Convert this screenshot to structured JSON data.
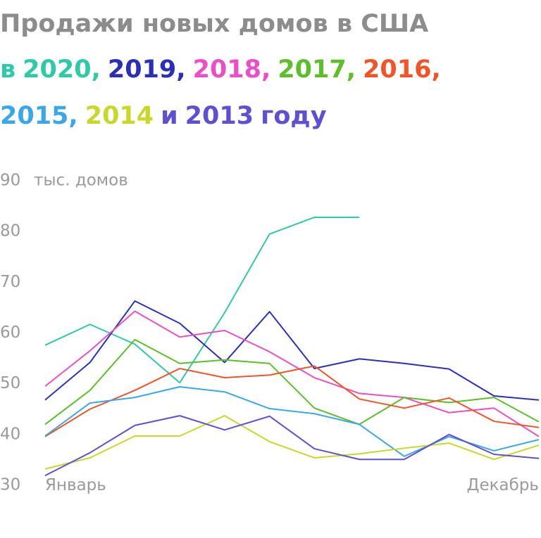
{
  "chart_data": {
    "type": "line",
    "title": "Продажи новых домов в США",
    "legend_text": {
      "prefix": "в",
      "separator": ",",
      "conjunction": "и",
      "suffix": "году"
    },
    "y_label": "тыс. домов",
    "categories": [
      "Январь",
      null,
      null,
      null,
      null,
      null,
      null,
      null,
      null,
      null,
      null,
      "Декабрь"
    ],
    "ylim": [
      30,
      90
    ],
    "yticks": [
      30,
      40,
      50,
      60,
      70,
      80,
      90
    ],
    "grid": false,
    "series": [
      {
        "name": "2020",
        "color": "#2ec9a5",
        "values": [
          57.6,
          61.7,
          57.8,
          50.2,
          64,
          79.5,
          82.8,
          82.8,
          null,
          null,
          null,
          null
        ]
      },
      {
        "name": "2019",
        "color": "#2b2fb8",
        "values": [
          46.8,
          54.2,
          66.3,
          61.9,
          54.2,
          64.2,
          53,
          54.9,
          54,
          52.9,
          47.6,
          46.8
        ]
      },
      {
        "name": "2018",
        "color": "#ea4fc6",
        "values": [
          49.5,
          56.5,
          64.3,
          59.2,
          60.5,
          56.3,
          51.2,
          48.1,
          47.3,
          44.3,
          45.2,
          39.6
        ]
      },
      {
        "name": "2017",
        "color": "#5cbf2a",
        "values": [
          42,
          48.7,
          58.7,
          54,
          54.7,
          54,
          45.2,
          42,
          47.3,
          46.3,
          47.3,
          42.5
        ]
      },
      {
        "name": "2016",
        "color": "#f0552a",
        "values": [
          39.6,
          45,
          48.7,
          53,
          51.2,
          51.7,
          53.5,
          47,
          45.2,
          47.2,
          42.6,
          41.4
        ]
      },
      {
        "name": "2015",
        "color": "#3aa7e8",
        "values": [
          39.7,
          46.2,
          47.3,
          49.4,
          48.4,
          45.1,
          44.1,
          42,
          35.7,
          39.6,
          36.8,
          39
        ]
      },
      {
        "name": "2014",
        "color": "#c8d82a",
        "values": [
          33.2,
          35.4,
          39.7,
          39.7,
          43.7,
          38.6,
          35.4,
          36.2,
          37.3,
          38.3,
          35.1,
          37.9
        ]
      },
      {
        "name": "2013",
        "color": "#5f4fd2",
        "values": [
          31.9,
          36.4,
          41.8,
          43.7,
          40.9,
          43.6,
          37.2,
          35.1,
          35.1,
          40,
          36.1,
          35.3
        ]
      }
    ]
  }
}
